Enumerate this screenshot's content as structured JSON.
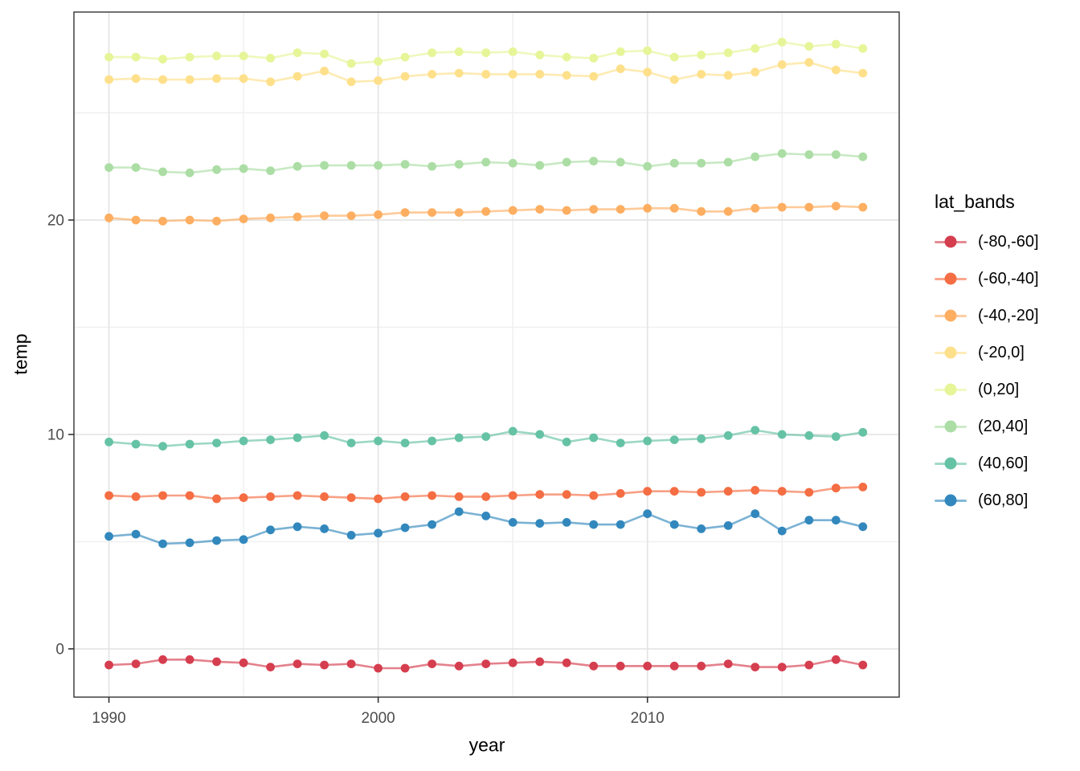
{
  "chart_data": {
    "type": "line",
    "title": "",
    "xlabel": "year",
    "ylabel": "temp",
    "legend_title": "lat_bands",
    "legend_position": "right",
    "grid": true,
    "panel_background": "#ffffff",
    "panel_border_color": "#333333",
    "grid_major_color": "#e4e4e4",
    "grid_minor_color": "#f0f0f0",
    "tick_label_color": "#4d4d4d",
    "x": [
      1990,
      1991,
      1992,
      1993,
      1994,
      1995,
      1996,
      1997,
      1998,
      1999,
      2000,
      2001,
      2002,
      2003,
      2004,
      2005,
      2006,
      2007,
      2008,
      2009,
      2010,
      2011,
      2012,
      2013,
      2014,
      2015,
      2016,
      2017,
      2018
    ],
    "xlim": [
      1988.7,
      2019.35
    ],
    "ylim": [
      -2.25,
      29.7
    ],
    "x_major_ticks": [
      1990,
      2000,
      2010
    ],
    "x_minor_ticks": [
      1995,
      2005,
      2015
    ],
    "y_major_ticks": [
      0,
      10,
      20
    ],
    "y_minor_ticks": [
      5,
      15,
      25
    ],
    "series": [
      {
        "name": "(-80,-60]",
        "color": "#d53e4f",
        "values": [
          -0.75,
          -0.7,
          -0.5,
          -0.5,
          -0.6,
          -0.65,
          -0.85,
          -0.7,
          -0.75,
          -0.7,
          -0.9,
          -0.9,
          -0.7,
          -0.8,
          -0.7,
          -0.65,
          -0.6,
          -0.65,
          -0.8,
          -0.8,
          -0.8,
          -0.8,
          -0.8,
          -0.7,
          -0.85,
          -0.85,
          -0.75,
          -0.5,
          -0.75
        ]
      },
      {
        "name": "(-60,-40]",
        "color": "#f46d43",
        "values": [
          7.15,
          7.1,
          7.15,
          7.15,
          7.0,
          7.05,
          7.1,
          7.15,
          7.1,
          7.05,
          7.0,
          7.1,
          7.15,
          7.1,
          7.1,
          7.15,
          7.2,
          7.2,
          7.15,
          7.25,
          7.35,
          7.35,
          7.3,
          7.35,
          7.4,
          7.35,
          7.3,
          7.5,
          7.55
        ]
      },
      {
        "name": "(-40,-20]",
        "color": "#fdae61",
        "values": [
          20.1,
          20.0,
          19.95,
          20.0,
          19.95,
          20.05,
          20.1,
          20.15,
          20.2,
          20.2,
          20.25,
          20.35,
          20.35,
          20.35,
          20.4,
          20.45,
          20.5,
          20.45,
          20.5,
          20.5,
          20.55,
          20.55,
          20.4,
          20.4,
          20.55,
          20.6,
          20.6,
          20.65,
          20.6
        ]
      },
      {
        "name": "(-20,0]",
        "color": "#fee08b",
        "values": [
          26.55,
          26.6,
          26.55,
          26.55,
          26.6,
          26.6,
          26.45,
          26.7,
          26.95,
          26.45,
          26.5,
          26.7,
          26.8,
          26.85,
          26.8,
          26.8,
          26.8,
          26.75,
          26.7,
          27.05,
          26.9,
          26.55,
          26.8,
          26.75,
          26.9,
          27.25,
          27.35,
          27.0,
          26.85
        ]
      },
      {
        "name": "(0,20]",
        "color": "#e6f598",
        "values": [
          27.6,
          27.6,
          27.5,
          27.6,
          27.65,
          27.65,
          27.55,
          27.8,
          27.75,
          27.3,
          27.4,
          27.6,
          27.8,
          27.85,
          27.8,
          27.85,
          27.7,
          27.6,
          27.55,
          27.85,
          27.9,
          27.6,
          27.7,
          27.8,
          28.0,
          28.3,
          28.1,
          28.2,
          28.0
        ]
      },
      {
        "name": "(20,40]",
        "color": "#abdda4",
        "values": [
          22.45,
          22.45,
          22.25,
          22.2,
          22.35,
          22.4,
          22.3,
          22.5,
          22.55,
          22.55,
          22.55,
          22.6,
          22.5,
          22.6,
          22.7,
          22.65,
          22.55,
          22.7,
          22.75,
          22.7,
          22.5,
          22.65,
          22.65,
          22.7,
          22.95,
          23.1,
          23.05,
          23.05,
          22.95
        ]
      },
      {
        "name": "(40,60]",
        "color": "#66c2a5",
        "values": [
          9.65,
          9.55,
          9.45,
          9.55,
          9.6,
          9.7,
          9.75,
          9.85,
          9.95,
          9.6,
          9.7,
          9.6,
          9.7,
          9.85,
          9.9,
          10.15,
          10.0,
          9.65,
          9.85,
          9.6,
          9.7,
          9.75,
          9.8,
          9.95,
          10.2,
          10.0,
          9.95,
          9.9,
          10.1
        ]
      },
      {
        "name": "(60,80]",
        "color": "#3288bd",
        "values": [
          5.25,
          5.35,
          4.9,
          4.95,
          5.05,
          5.1,
          5.55,
          5.7,
          5.6,
          5.3,
          5.4,
          5.65,
          5.8,
          6.4,
          6.2,
          5.9,
          5.85,
          5.9,
          5.8,
          5.8,
          6.3,
          5.8,
          5.6,
          5.75,
          6.3,
          5.5,
          6.0,
          6.0,
          5.7
        ]
      }
    ]
  }
}
